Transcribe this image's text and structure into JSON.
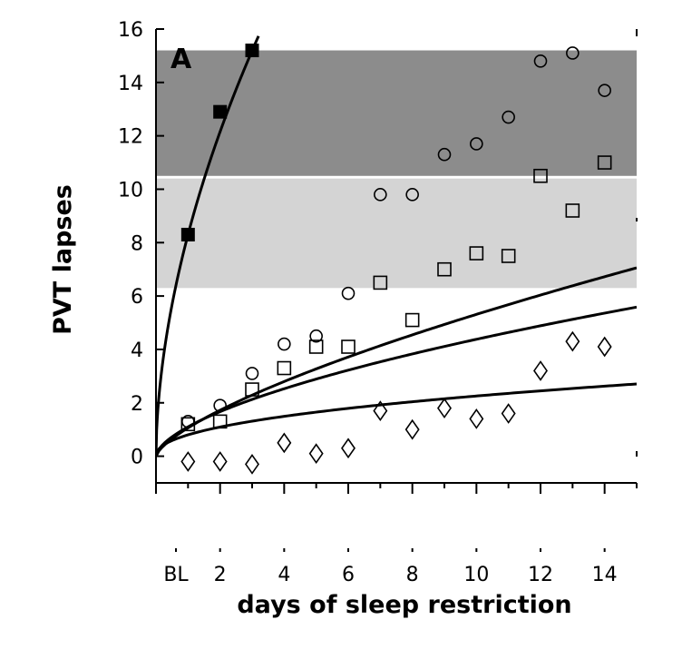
{
  "chart_data": {
    "type": "scatter",
    "panel_label": "A",
    "xlabel": "days of sleep restriction",
    "ylabel": "PVT lapses",
    "xlim": [
      0,
      15
    ],
    "ylim": [
      -1,
      16
    ],
    "x_tick_labels": [
      {
        "x": 0,
        "label": "BL"
      },
      {
        "x": 2,
        "label": "2"
      },
      {
        "x": 4,
        "label": "4"
      },
      {
        "x": 6,
        "label": "6"
      },
      {
        "x": 8,
        "label": "8"
      },
      {
        "x": 10,
        "label": "10"
      },
      {
        "x": 12,
        "label": "12"
      },
      {
        "x": 14,
        "label": "14"
      }
    ],
    "y_ticks": [
      0,
      2,
      4,
      6,
      8,
      10,
      12,
      14,
      16
    ],
    "bands": [
      {
        "y0": 10.5,
        "y1": 15.2,
        "color": "#8c8c8c"
      },
      {
        "y0": 6.3,
        "y1": 10.4,
        "color": "#d4d4d4"
      }
    ],
    "series": [
      {
        "marker": "filled-square",
        "x": [
          1,
          2,
          3
        ],
        "y": [
          8.3,
          12.9,
          15.2
        ]
      },
      {
        "marker": "circle",
        "x": [
          1,
          2,
          3,
          4,
          5,
          6,
          7,
          8,
          9,
          10,
          11,
          12,
          13,
          14
        ],
        "y": [
          1.3,
          1.9,
          3.1,
          4.2,
          4.5,
          6.1,
          9.8,
          9.8,
          11.3,
          11.7,
          12.7,
          14.8,
          15.1,
          13.7
        ]
      },
      {
        "marker": "open-square",
        "x": [
          1,
          2,
          3,
          4,
          5,
          6,
          7,
          8,
          9,
          10,
          11,
          12,
          13,
          14
        ],
        "y": [
          1.2,
          1.3,
          2.5,
          3.3,
          4.1,
          4.1,
          6.5,
          5.1,
          7.0,
          7.6,
          7.5,
          10.5,
          9.2,
          11.0
        ]
      },
      {
        "marker": "diamond",
        "x": [
          1,
          2,
          3,
          4,
          5,
          6,
          7,
          8,
          9,
          10,
          11,
          12,
          13,
          14
        ],
        "y": [
          -0.2,
          -0.2,
          -0.3,
          0.5,
          0.1,
          0.3,
          1.7,
          1.0,
          1.8,
          1.4,
          1.6,
          3.2,
          4.3,
          4.1
        ]
      }
    ],
    "fit_curves": [
      {
        "a": 8.3,
        "p": 0.55,
        "xmax": 3.2
      },
      {
        "a": 1.06,
        "p": 0.7,
        "xmax": 15
      },
      {
        "a": 1.1,
        "p": 0.6,
        "xmax": 15
      },
      {
        "a": 0.8,
        "p": 0.45,
        "xmax": 15
      }
    ]
  }
}
